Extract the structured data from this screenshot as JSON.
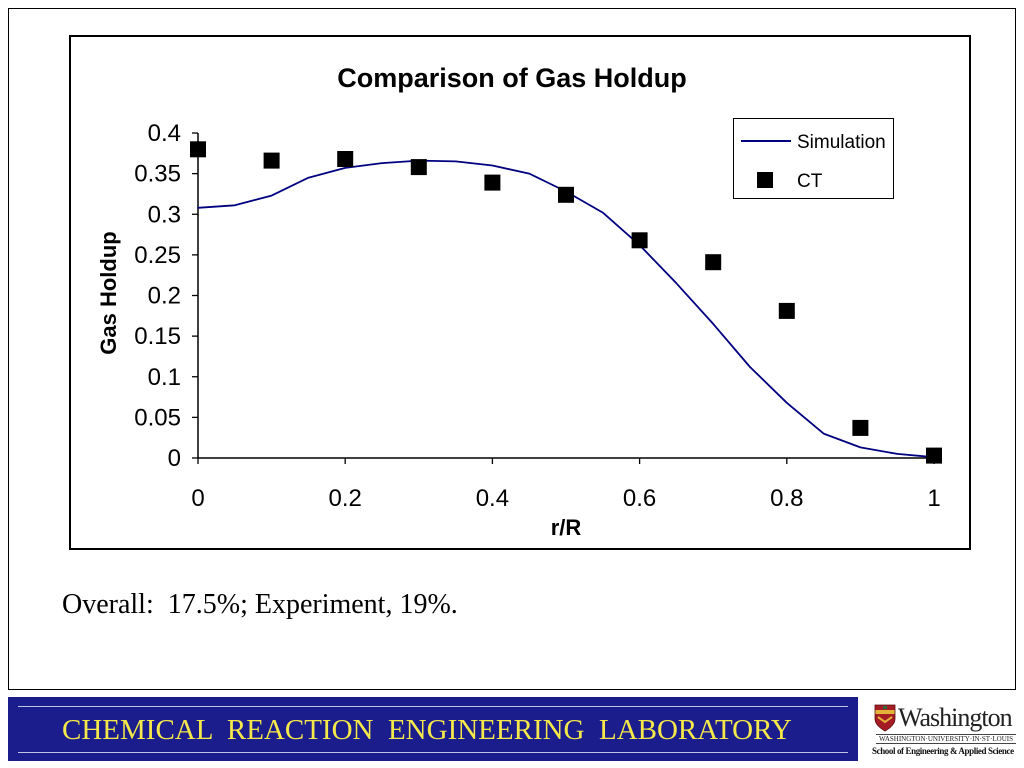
{
  "chart_data": {
    "type": "line",
    "title": "Comparison of Gas Holdup",
    "xlabel": "r/R",
    "ylabel": "Gas Holdup",
    "xlim": [
      0,
      1
    ],
    "ylim": [
      0,
      0.4
    ],
    "xticks": [
      0,
      0.2,
      0.4,
      0.6,
      0.8,
      1
    ],
    "yticks": [
      0,
      0.05,
      0.1,
      0.15,
      0.2,
      0.25,
      0.3,
      0.35,
      0.4
    ],
    "grid": false,
    "legend_position": "top-right",
    "series": [
      {
        "name": "Simulation",
        "type": "line",
        "color": "#000080",
        "x": [
          0,
          0.05,
          0.1,
          0.15,
          0.2,
          0.25,
          0.3,
          0.35,
          0.4,
          0.45,
          0.5,
          0.55,
          0.6,
          0.65,
          0.7,
          0.75,
          0.8,
          0.85,
          0.9,
          0.95,
          1
        ],
        "y": [
          0.308,
          0.311,
          0.323,
          0.345,
          0.357,
          0.363,
          0.366,
          0.365,
          0.36,
          0.35,
          0.328,
          0.302,
          0.262,
          0.215,
          0.165,
          0.112,
          0.068,
          0.03,
          0.013,
          0.005,
          0.001
        ]
      },
      {
        "name": "CT",
        "type": "scatter",
        "marker": "square",
        "color": "#000000",
        "x": [
          0,
          0.1,
          0.2,
          0.3,
          0.4,
          0.5,
          0.6,
          0.7,
          0.8,
          0.9,
          1
        ],
        "y": [
          0.38,
          0.366,
          0.368,
          0.358,
          0.339,
          0.324,
          0.268,
          0.241,
          0.181,
          0.037,
          0.003
        ]
      }
    ]
  },
  "slide": {
    "summary": "Overall:  17.5%; Experiment, 19%."
  },
  "footer": {
    "banner_title": "CHEMICAL  REACTION  ENGINEERING  LABORATORY",
    "logo": {
      "crest_icon": "university-shield-icon",
      "wordmark": "Washington",
      "university": "WASHINGTON·UNIVERSITY·IN·ST·LOUIS",
      "school": "School of Engineering & Applied Science"
    }
  },
  "colors": {
    "banner_background": "#1b1d8c",
    "banner_text": "#f5e84a",
    "banner_rules": "#c0c2e6",
    "crest_red": "#a51c24",
    "crest_gold": "#e2b23a"
  }
}
